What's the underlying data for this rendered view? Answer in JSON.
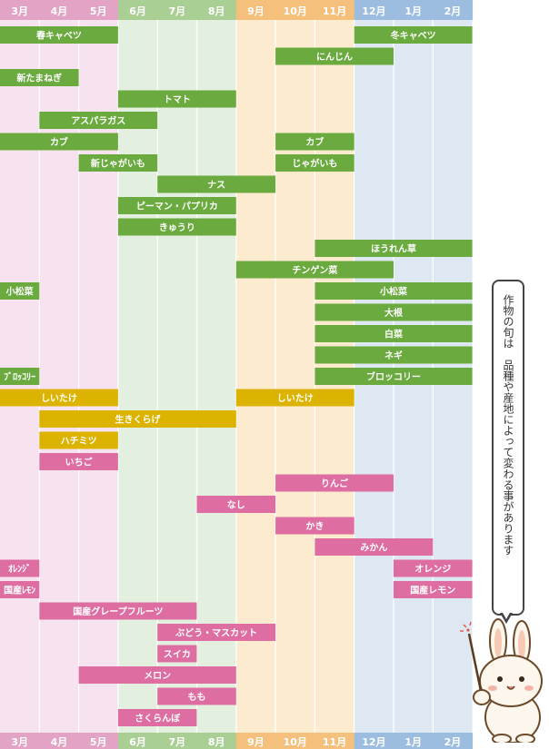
{
  "chart_data": {
    "type": "gantt",
    "months": [
      "3月",
      "4月",
      "5月",
      "6月",
      "7月",
      "8月",
      "9月",
      "10月",
      "11月",
      "12月",
      "1月",
      "2月"
    ],
    "season_colors": {
      "spring": "#f6e3ef",
      "summer": "#e3f0df",
      "autumn": "#fdebd0",
      "winter": "#dde8f3",
      "spring_header": "#e3a3c4",
      "summer_header": "#a9cf95",
      "autumn_header": "#f5c07c",
      "winter_header": "#9dbde0"
    },
    "category_colors": {
      "vegetable": "#6aaa3f",
      "mushroom": "#dcb300",
      "fruit": "#de6ea2"
    },
    "items": [
      {
        "label": "春キャベツ",
        "category": "vegetable",
        "row": 0,
        "start": 0,
        "end": 3
      },
      {
        "label": "冬キャベツ",
        "category": "vegetable",
        "row": 0,
        "start": 9,
        "end": 12
      },
      {
        "label": "にんじん",
        "category": "vegetable",
        "row": 1,
        "start": 7,
        "end": 10
      },
      {
        "label": "新たまねぎ",
        "category": "vegetable",
        "row": 2,
        "start": 0,
        "end": 2
      },
      {
        "label": "トマト",
        "category": "vegetable",
        "row": 3,
        "start": 3,
        "end": 6
      },
      {
        "label": "アスパラガス",
        "category": "vegetable",
        "row": 4,
        "start": 1,
        "end": 4
      },
      {
        "label": "カブ",
        "category": "vegetable",
        "row": 5,
        "start": 0,
        "end": 3
      },
      {
        "label": "カブ",
        "category": "vegetable",
        "row": 5,
        "start": 7,
        "end": 9
      },
      {
        "label": "新じゃがいも",
        "category": "vegetable",
        "row": 6,
        "start": 2,
        "end": 4
      },
      {
        "label": "じゃがいも",
        "category": "vegetable",
        "row": 6,
        "start": 7,
        "end": 9
      },
      {
        "label": "ナス",
        "category": "vegetable",
        "row": 7,
        "start": 4,
        "end": 7
      },
      {
        "label": "ピーマン・パプリカ",
        "category": "vegetable",
        "row": 8,
        "start": 3,
        "end": 6
      },
      {
        "label": "きゅうり",
        "category": "vegetable",
        "row": 9,
        "start": 3,
        "end": 6
      },
      {
        "label": "ほうれん草",
        "category": "vegetable",
        "row": 10,
        "start": 8,
        "end": 12
      },
      {
        "label": "チンゲン菜",
        "category": "vegetable",
        "row": 11,
        "start": 6,
        "end": 10
      },
      {
        "label": "小松菜",
        "category": "vegetable",
        "row": 12,
        "start": 0,
        "end": 1
      },
      {
        "label": "小松菜",
        "category": "vegetable",
        "row": 12,
        "start": 8,
        "end": 12
      },
      {
        "label": "大根",
        "category": "vegetable",
        "row": 13,
        "start": 8,
        "end": 12
      },
      {
        "label": "白菜",
        "category": "vegetable",
        "row": 14,
        "start": 8,
        "end": 12
      },
      {
        "label": "ネギ",
        "category": "vegetable",
        "row": 15,
        "start": 8,
        "end": 12
      },
      {
        "label": "ﾌﾞﾛｯｺﾘｰ",
        "category": "vegetable",
        "row": 16,
        "start": 0,
        "end": 1
      },
      {
        "label": "ブロッコリー",
        "category": "vegetable",
        "row": 16,
        "start": 8,
        "end": 12
      },
      {
        "label": "しいたけ",
        "category": "mushroom",
        "row": 17,
        "start": 0,
        "end": 3
      },
      {
        "label": "しいたけ",
        "category": "mushroom",
        "row": 17,
        "start": 6,
        "end": 9
      },
      {
        "label": "生きくらげ",
        "category": "mushroom",
        "row": 18,
        "start": 1,
        "end": 6
      },
      {
        "label": "ハチミツ",
        "category": "mushroom",
        "row": 19,
        "start": 1,
        "end": 3
      },
      {
        "label": "いちご",
        "category": "fruit",
        "row": 20,
        "start": 1,
        "end": 3
      },
      {
        "label": "りんご",
        "category": "fruit",
        "row": 21,
        "start": 7,
        "end": 10
      },
      {
        "label": "なし",
        "category": "fruit",
        "row": 22,
        "start": 5,
        "end": 7
      },
      {
        "label": "かき",
        "category": "fruit",
        "row": 23,
        "start": 7,
        "end": 9
      },
      {
        "label": "みかん",
        "category": "fruit",
        "row": 24,
        "start": 8,
        "end": 11
      },
      {
        "label": "ｵﾚﾝｼﾞ",
        "category": "fruit",
        "row": 25,
        "start": 0,
        "end": 1
      },
      {
        "label": "オレンジ",
        "category": "fruit",
        "row": 25,
        "start": 10,
        "end": 12
      },
      {
        "label": "国産ﾚﾓﾝ",
        "category": "fruit",
        "row": 26,
        "start": 0,
        "end": 1
      },
      {
        "label": "国産レモン",
        "category": "fruit",
        "row": 26,
        "start": 10,
        "end": 12
      },
      {
        "label": "国産グレープフルーツ",
        "category": "fruit",
        "row": 27,
        "start": 1,
        "end": 5
      },
      {
        "label": "ぶどう・マスカット",
        "category": "fruit",
        "row": 28,
        "start": 4,
        "end": 7
      },
      {
        "label": "スイカ",
        "category": "fruit",
        "row": 29,
        "start": 4,
        "end": 5
      },
      {
        "label": "メロン",
        "category": "fruit",
        "row": 30,
        "start": 2,
        "end": 6
      },
      {
        "label": "もも",
        "category": "fruit",
        "row": 31,
        "start": 4,
        "end": 6
      },
      {
        "label": "さくらんぼ",
        "category": "fruit",
        "row": 32,
        "start": 3,
        "end": 5
      }
    ]
  },
  "note": {
    "text": "作物の旬は　品種や産地によって変わる事があります",
    "mascot_icon": "rabbit-mascot-icon"
  }
}
